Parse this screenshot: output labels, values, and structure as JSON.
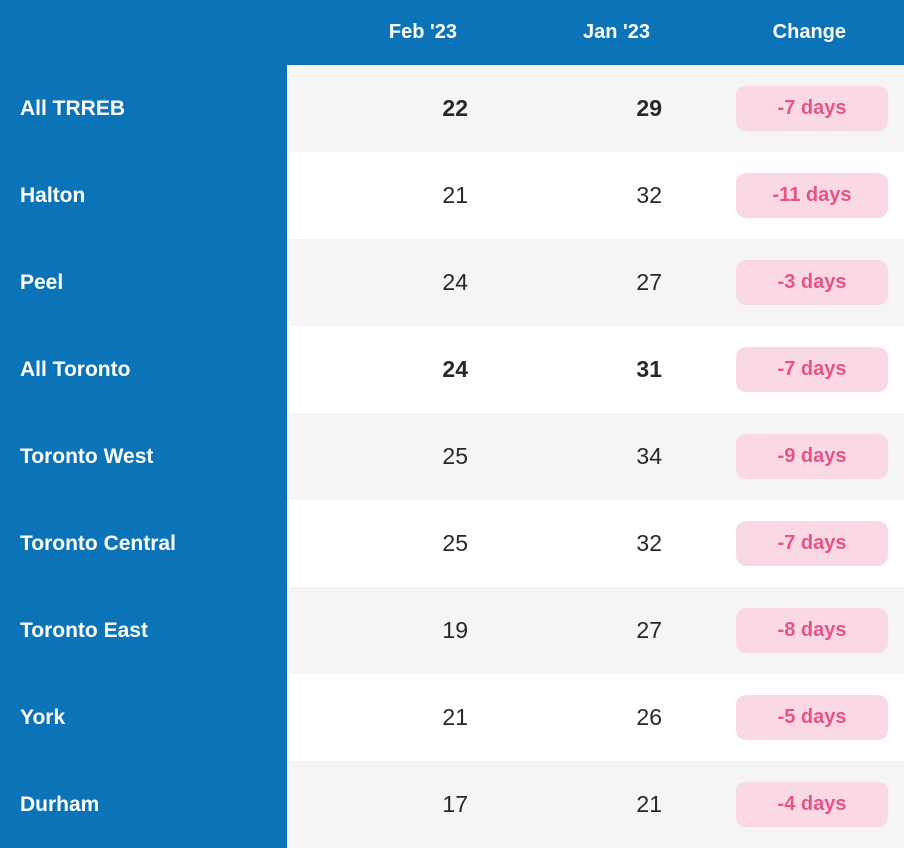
{
  "colors": {
    "brand_blue": "#0b73b8",
    "row_alt_gray": "#f5f5f5",
    "row_white": "#ffffff",
    "badge_background": "#fbd9e4",
    "badge_text": "#e5538a",
    "value_text": "#28282b",
    "header_text": "#ffffff"
  },
  "chart_data": {
    "type": "table",
    "columns": [
      "",
      "Feb '23",
      "Jan '23",
      "Change"
    ],
    "rows": [
      {
        "region": "All TRREB",
        "feb_23": 22,
        "jan_23": 29,
        "change": "-7 days",
        "emphasis": true
      },
      {
        "region": "Halton",
        "feb_23": 21,
        "jan_23": 32,
        "change": "-11 days",
        "emphasis": false
      },
      {
        "region": "Peel",
        "feb_23": 24,
        "jan_23": 27,
        "change": "-3 days",
        "emphasis": false
      },
      {
        "region": "All Toronto",
        "feb_23": 24,
        "jan_23": 31,
        "change": "-7 days",
        "emphasis": true
      },
      {
        "region": "Toronto West",
        "feb_23": 25,
        "jan_23": 34,
        "change": "-9 days",
        "emphasis": false
      },
      {
        "region": "Toronto Central",
        "feb_23": 25,
        "jan_23": 32,
        "change": "-7 days",
        "emphasis": false
      },
      {
        "region": "Toronto East",
        "feb_23": 19,
        "jan_23": 27,
        "change": "-8 days",
        "emphasis": false
      },
      {
        "region": "York",
        "feb_23": 21,
        "jan_23": 26,
        "change": "-5 days",
        "emphasis": false
      },
      {
        "region": "Durham",
        "feb_23": 17,
        "jan_23": 21,
        "change": "-4 days",
        "emphasis": false
      }
    ]
  }
}
